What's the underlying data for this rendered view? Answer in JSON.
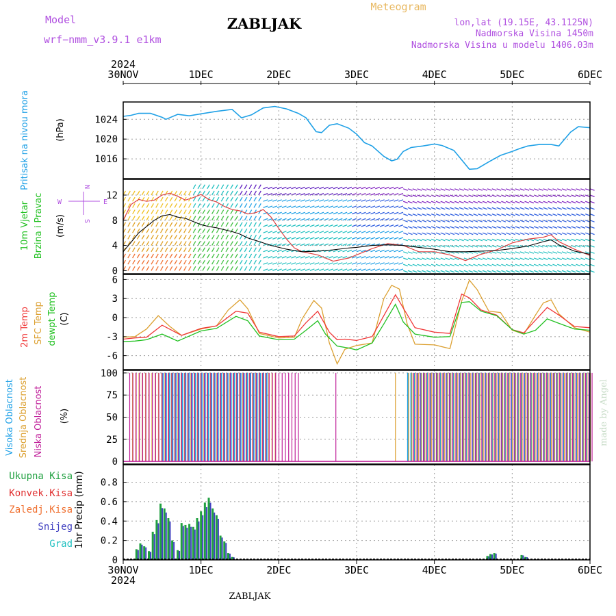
{
  "header": {
    "model_label": "Model",
    "model_name": "wrf−nmm_v3.9.1  e1km",
    "station": "ZABLJAK",
    "product": "Meteogram",
    "coords": "lon,lat (19.15E, 43.1125N)",
    "altitude": "Nadmorska Visina 1450m",
    "model_altitude": "Nadmorska Visina u modelu 1406.03m",
    "year": "2024",
    "footer_station": "ZABLJAK",
    "credit": "made by Angel"
  },
  "colors": {
    "pressure": "#1ea0e6",
    "wind_speed": "#000000",
    "wind_gust": "#e04040",
    "temp2m": "#f03838",
    "sfc_temp": "#dca030",
    "dewpoint": "#20c020",
    "cloud_high": "#1ea0e6",
    "cloud_mid": "#dca030",
    "cloud_low": "#c0209a",
    "precip_total": "#20a040",
    "precip_conv": "#e03030",
    "precip_freezing": "#f07030",
    "precip_snow": "#4040c0",
    "precip_hail": "#20c0c0"
  },
  "chart_data": [
    {
      "type": "line",
      "panel": "pressure",
      "ylabel_colored": "Pritisak na nivou mora",
      "ylabel": "(hPa)",
      "x_ticks": [
        "30NOV",
        "1DEC",
        "2DEC",
        "3DEC",
        "4DEC",
        "5DEC",
        "6DEC"
      ],
      "ylim": [
        1012,
        1027.5
      ],
      "yticks": [
        "1016",
        "1020",
        "1024"
      ],
      "series": [
        {
          "key": "pressure",
          "x": [
            0,
            0.1,
            0.2,
            0.35,
            0.5,
            0.55,
            0.7,
            0.85,
            1.0,
            1.2,
            1.4,
            1.52,
            1.65,
            1.8,
            1.95,
            2.1,
            2.25,
            2.35,
            2.48,
            2.55,
            2.65,
            2.75,
            2.9,
            3.0,
            3.1,
            3.2,
            3.35,
            3.45,
            3.52,
            3.6,
            3.7,
            3.85,
            4.0,
            4.1,
            4.25,
            4.35,
            4.45,
            4.55,
            4.7,
            4.85,
            5.0,
            5.1,
            5.2,
            5.35,
            5.5,
            5.6,
            5.75,
            5.85,
            6.0
          ],
          "values": [
            1024.6,
            1024.8,
            1025.2,
            1025.2,
            1024.4,
            1024.0,
            1025.0,
            1024.7,
            1025.1,
            1025.6,
            1026.0,
            1024.3,
            1024.9,
            1026.3,
            1026.6,
            1026.1,
            1025.2,
            1024.3,
            1021.5,
            1021.3,
            1022.8,
            1023.1,
            1022.2,
            1021.0,
            1019.3,
            1018.6,
            1016.5,
            1015.6,
            1015.9,
            1017.5,
            1018.3,
            1018.6,
            1019.0,
            1018.7,
            1017.7,
            1015.8,
            1013.9,
            1014.0,
            1015.4,
            1016.7,
            1017.5,
            1018.1,
            1018.6,
            1018.9,
            1018.9,
            1018.6,
            1021.4,
            1022.5,
            1022.3
          ]
        }
      ]
    },
    {
      "type": "line",
      "panel": "wind",
      "ylabel_colored": [
        "10m Vjetar",
        "Brzina i Pravac"
      ],
      "ylabel": "(m/s)",
      "compass": [
        "N",
        "W",
        "E",
        "S"
      ],
      "ylim": [
        -0.5,
        14.5
      ],
      "yticks": [
        "0",
        "4",
        "8",
        "12"
      ],
      "series": [
        {
          "key": "wind_speed",
          "x": [
            0.0,
            0.1,
            0.2,
            0.3,
            0.4,
            0.5,
            0.6,
            0.7,
            0.8,
            0.9,
            1.0,
            1.1,
            1.2,
            1.3,
            1.4,
            1.5,
            1.6,
            1.7,
            1.8,
            1.9,
            2.0,
            2.1,
            2.2,
            2.3,
            2.5,
            2.7,
            2.9,
            3.0,
            3.2,
            3.4,
            3.6,
            3.8,
            4.0,
            4.2,
            4.4,
            4.6,
            4.8,
            5.0,
            5.2,
            5.4,
            5.5,
            5.6,
            5.8,
            6.0
          ],
          "values": [
            3.0,
            4.5,
            6.0,
            7.0,
            8.0,
            8.7,
            8.9,
            8.5,
            8.3,
            7.8,
            7.3,
            7.0,
            6.8,
            6.5,
            6.2,
            5.8,
            5.2,
            4.8,
            4.4,
            4.0,
            3.7,
            3.4,
            3.2,
            3.0,
            3.1,
            3.3,
            3.6,
            3.7,
            4.0,
            4.1,
            4.0,
            3.7,
            3.4,
            3.0,
            3.0,
            3.1,
            3.2,
            3.5,
            3.9,
            4.6,
            4.9,
            4.1,
            3.1,
            2.6
          ]
        },
        {
          "key": "wind_gust",
          "x": [
            0.0,
            0.1,
            0.2,
            0.3,
            0.4,
            0.5,
            0.6,
            0.7,
            0.8,
            0.9,
            1.0,
            1.1,
            1.2,
            1.3,
            1.4,
            1.5,
            1.6,
            1.7,
            1.8,
            1.9,
            2.0,
            2.1,
            2.2,
            2.3,
            2.5,
            2.7,
            2.9,
            3.0,
            3.2,
            3.4,
            3.6,
            3.8,
            4.0,
            4.2,
            4.4,
            4.6,
            4.8,
            5.0,
            5.2,
            5.4,
            5.5,
            5.6,
            5.8,
            6.0
          ],
          "values": [
            8.0,
            10.5,
            11.3,
            11.0,
            11.2,
            12.0,
            12.3,
            11.8,
            11.2,
            11.6,
            12.1,
            11.3,
            10.9,
            10.2,
            9.7,
            9.5,
            9.0,
            9.2,
            9.7,
            8.5,
            6.7,
            5.0,
            3.6,
            3.0,
            2.5,
            1.5,
            2.0,
            2.5,
            3.5,
            4.3,
            4.0,
            3.0,
            3.0,
            2.5,
            1.6,
            2.6,
            3.3,
            4.4,
            5.0,
            5.3,
            5.7,
            4.6,
            3.4,
            2.4
          ]
        }
      ]
    },
    {
      "type": "line",
      "panel": "temperature",
      "ylabel_colored": [
        "2m Temp",
        "SFC Temp",
        "dewpt Temp"
      ],
      "ylabel": "(C)",
      "ylim": [
        -8.2,
        6.8
      ],
      "yticks": [
        "-6",
        "-3",
        "0",
        "3",
        "6"
      ],
      "series": [
        {
          "key": "temp2m",
          "x": [
            0.0,
            0.15,
            0.3,
            0.5,
            0.75,
            1.0,
            1.2,
            1.45,
            1.6,
            1.75,
            2.0,
            2.2,
            2.35,
            2.5,
            2.65,
            2.75,
            2.85,
            3.0,
            3.2,
            3.35,
            3.5,
            3.6,
            3.75,
            4.0,
            4.2,
            4.35,
            4.45,
            4.6,
            4.8,
            5.0,
            5.15,
            5.3,
            5.45,
            5.6,
            5.8,
            6.0
          ],
          "values": [
            -3.4,
            -3.2,
            -3.1,
            -1.2,
            -2.8,
            -1.7,
            -1.3,
            1.0,
            0.7,
            -2.3,
            -3.0,
            -2.9,
            -0.8,
            1.0,
            -2.3,
            -3.5,
            -3.4,
            -3.6,
            -3.0,
            0.3,
            3.6,
            1.5,
            -1.6,
            -2.3,
            -2.5,
            3.7,
            3.1,
            1.2,
            0.4,
            -1.9,
            -2.4,
            -0.4,
            1.6,
            0.4,
            -1.4,
            -1.6
          ]
        },
        {
          "key": "sfc_temp",
          "x": [
            0.0,
            0.15,
            0.3,
            0.45,
            0.6,
            0.75,
            1.0,
            1.2,
            1.35,
            1.5,
            1.6,
            1.75,
            2.0,
            2.2,
            2.3,
            2.45,
            2.55,
            2.65,
            2.75,
            2.85,
            3.0,
            3.2,
            3.35,
            3.45,
            3.55,
            3.65,
            3.75,
            4.0,
            4.2,
            4.35,
            4.45,
            4.55,
            4.7,
            4.85,
            5.0,
            5.15,
            5.3,
            5.4,
            5.5,
            5.6,
            5.8,
            6.0
          ],
          "values": [
            -3.1,
            -3.0,
            -1.8,
            0.3,
            -1.4,
            -2.8,
            -1.8,
            -1.3,
            1.2,
            2.8,
            1.4,
            -2.5,
            -3.2,
            -3.1,
            -0.2,
            2.7,
            1.5,
            -4.0,
            -7.3,
            -5.0,
            -4.4,
            -4.0,
            3.0,
            5.1,
            4.5,
            -1.0,
            -4.2,
            -4.3,
            -4.9,
            2.6,
            5.9,
            4.4,
            1.0,
            0.8,
            -2.0,
            -2.6,
            0.4,
            2.3,
            2.8,
            0.6,
            -1.6,
            -2.3
          ]
        },
        {
          "key": "dewpoint",
          "x": [
            0.0,
            0.15,
            0.3,
            0.5,
            0.7,
            1.0,
            1.2,
            1.45,
            1.6,
            1.75,
            2.0,
            2.2,
            2.35,
            2.5,
            2.6,
            2.75,
            2.9,
            3.0,
            3.2,
            3.35,
            3.5,
            3.6,
            3.75,
            4.0,
            4.2,
            4.35,
            4.45,
            4.6,
            4.8,
            5.0,
            5.15,
            5.3,
            5.45,
            5.6,
            5.8,
            6.0
          ],
          "values": [
            -3.8,
            -3.7,
            -3.5,
            -2.6,
            -3.7,
            -2.1,
            -1.7,
            0.2,
            -0.5,
            -2.9,
            -3.5,
            -3.4,
            -2.0,
            -0.5,
            -2.6,
            -4.5,
            -4.8,
            -5.1,
            -4.0,
            -1.0,
            2.1,
            -0.7,
            -2.6,
            -3.1,
            -3.0,
            2.4,
            2.5,
            1.0,
            0.3,
            -1.9,
            -2.6,
            -2.0,
            -0.2,
            -0.9,
            -1.8,
            -2.0
          ]
        }
      ]
    },
    {
      "type": "bar",
      "panel": "clouds",
      "ylabel_colored": [
        "Visoka Oblacnost",
        "Srednja Oblacnost",
        "Niska Oblacnost"
      ],
      "ylabel": "(%)",
      "ylim": [
        -3,
        103
      ],
      "yticks": [
        "0",
        "25",
        "50",
        "75",
        "100"
      ],
      "series": [
        {
          "key": "cloud_high",
          "segments": [
            [
              0.5,
              1.85,
              100
            ],
            [
              3.65,
              6.0,
              100
            ]
          ]
        },
        {
          "key": "cloud_mid",
          "segments": [
            [
              0.1,
              1.95,
              100
            ],
            [
              3.48,
              3.5,
              100
            ],
            [
              3.65,
              6.0,
              100
            ]
          ]
        },
        {
          "key": "cloud_low",
          "segments": [
            [
              0.05,
              2.25,
              100
            ],
            [
              2.7,
              2.72,
              100
            ],
            [
              3.7,
              6.0,
              100
            ]
          ]
        }
      ]
    },
    {
      "type": "bar",
      "panel": "precip",
      "ylabel_colored": [
        "Ukupna Kisa",
        "Konvek.Kisa",
        "Zaledj.Kisa",
        "Snijeg",
        "Grad"
      ],
      "ylabel": "1hr Precip (mm)",
      "ylim": [
        0,
        0.98
      ],
      "yticks": [
        "0",
        "0.2",
        "0.4",
        "0.6",
        "0.8"
      ],
      "series": [
        {
          "key": "precip_total",
          "x": [
            0.17,
            0.22,
            0.27,
            0.33,
            0.38,
            0.43,
            0.48,
            0.53,
            0.58,
            0.63,
            0.7,
            0.75,
            0.8,
            0.85,
            0.9,
            0.95,
            1.0,
            1.05,
            1.1,
            1.15,
            1.2,
            1.25,
            1.3,
            1.35,
            1.4,
            4.68,
            4.72,
            4.77,
            5.12,
            5.17
          ],
          "values": [
            0.11,
            0.17,
            0.14,
            0.09,
            0.29,
            0.41,
            0.58,
            0.53,
            0.43,
            0.2,
            0.1,
            0.38,
            0.36,
            0.37,
            0.34,
            0.43,
            0.5,
            0.59,
            0.64,
            0.53,
            0.46,
            0.25,
            0.19,
            0.07,
            0.03,
            0.04,
            0.06,
            0.07,
            0.05,
            0.03
          ]
        }
      ]
    }
  ]
}
